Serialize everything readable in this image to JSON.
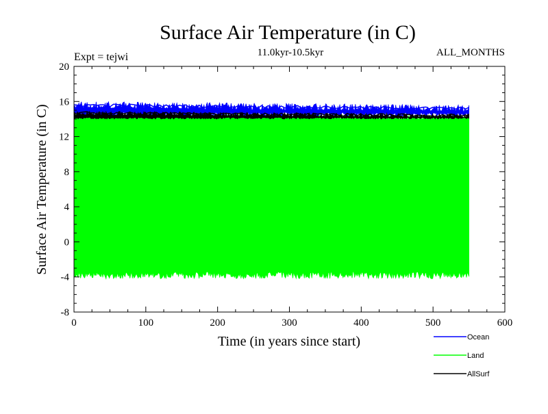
{
  "chart_data": {
    "type": "line",
    "title": "Surface Air Temperature (in C)",
    "subtitle": "11.0kyr-10.5kyr",
    "left_annotation": "Expt = tejwi",
    "right_annotation": "ALL_MONTHS",
    "xlabel": "Time (in years since start)",
    "ylabel": "Surface Air Temperature (in C)",
    "xlim": [
      0,
      600
    ],
    "ylim": [
      -8,
      20
    ],
    "xticks": [
      0,
      100,
      200,
      300,
      400,
      500,
      600
    ],
    "yticks": [
      -8,
      -4,
      0,
      4,
      8,
      12,
      16,
      20
    ],
    "x_range_data": [
      0,
      550
    ],
    "series": [
      {
        "name": "Ocean",
        "color": "#0000ff",
        "band_min": 14.3,
        "band_max": 16.0,
        "mean_low": 14.8,
        "mean_high": 15.5,
        "trend_start": 15.6,
        "trend_end": 15.2
      },
      {
        "name": "Land",
        "color": "#00ff00",
        "band_min": -4.2,
        "band_max": 14.6,
        "mean_low": -3.4,
        "mean_high": 14.3,
        "trend_start": 14.4,
        "trend_end": 14.2
      },
      {
        "name": "AllSurf",
        "color": "#000000",
        "band_min": 14.0,
        "band_max": 14.9,
        "mean_low": 14.2,
        "mean_high": 14.6,
        "trend_start": 14.7,
        "trend_end": 14.4
      }
    ],
    "legend_position": "bottom-right"
  }
}
